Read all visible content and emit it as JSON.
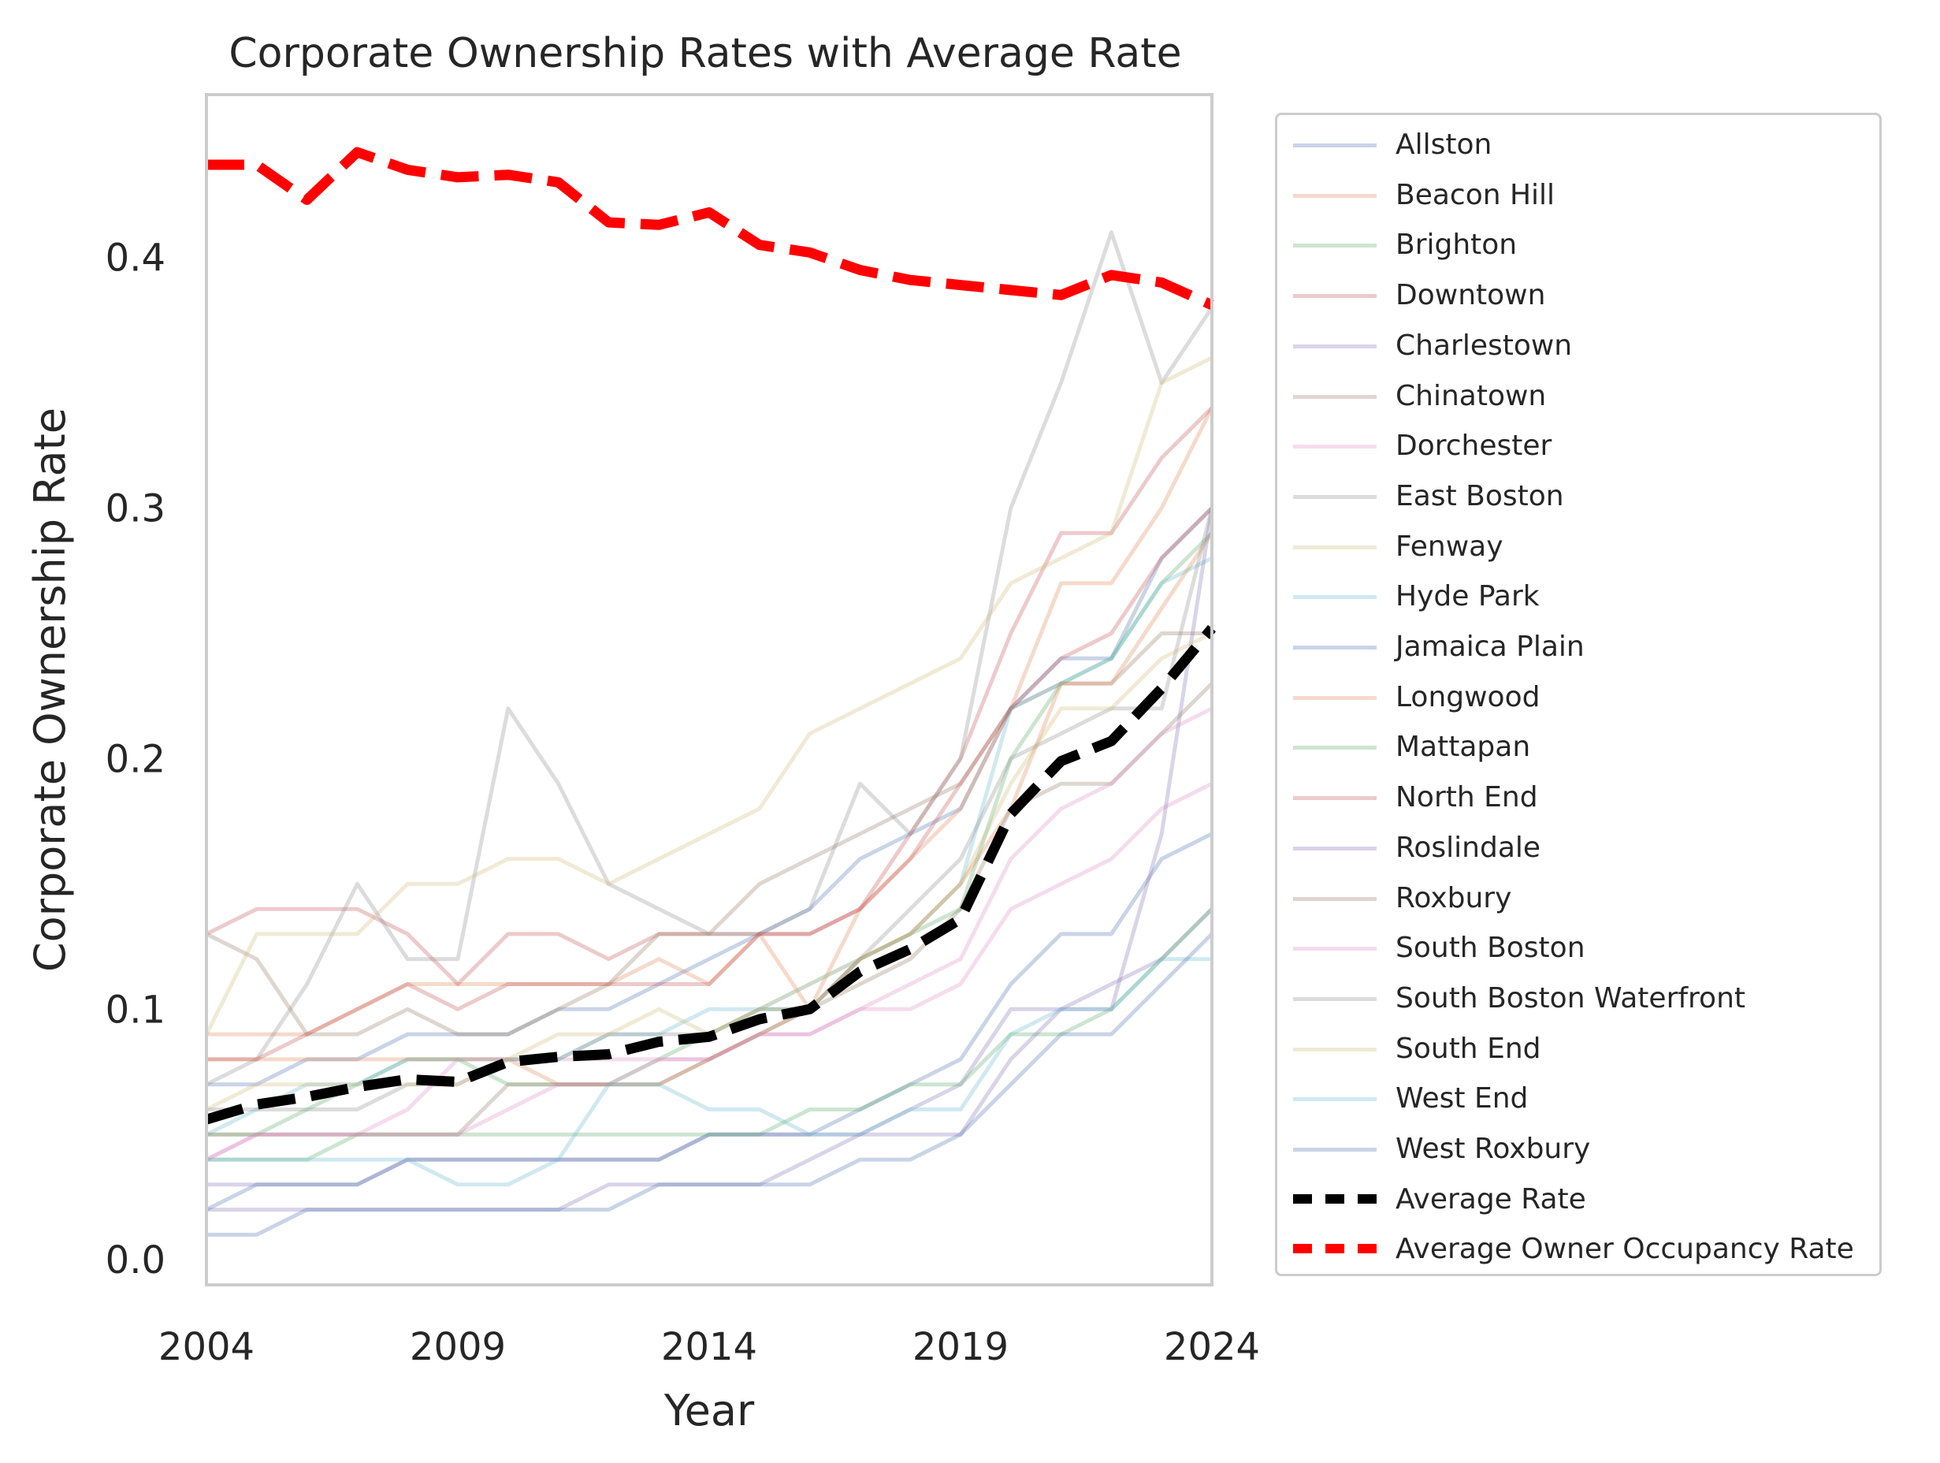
{
  "chart_data": {
    "type": "line",
    "title": "Corporate Ownership Rates with Average Rate",
    "xlabel": "Year",
    "ylabel": "Corporate Ownership Rate",
    "xlim": [
      2004,
      2024
    ],
    "ylim": [
      -0.01,
      0.465
    ],
    "xticks": [
      2004,
      2009,
      2014,
      2019,
      2024
    ],
    "xtick_labels": [
      "2004",
      "2009",
      "2014",
      "2019",
      "2024"
    ],
    "yticks": [
      0.0,
      0.1,
      0.2,
      0.3,
      0.4
    ],
    "ytick_labels": [
      "0.0",
      "0.1",
      "0.2",
      "0.3",
      "0.4"
    ],
    "grid": false,
    "legend_position": "outside right",
    "x": [
      2004,
      2005,
      2006,
      2007,
      2008,
      2009,
      2010,
      2011,
      2012,
      2013,
      2014,
      2015,
      2016,
      2017,
      2018,
      2019,
      2020,
      2021,
      2022,
      2023,
      2024
    ],
    "series": [
      {
        "name": "Allston",
        "color": "#4c72b0",
        "style": "thin",
        "values": [
          0.07,
          0.07,
          0.08,
          0.08,
          0.09,
          0.09,
          0.09,
          0.1,
          0.1,
          0.11,
          0.12,
          0.13,
          0.14,
          0.16,
          0.17,
          0.18,
          0.22,
          0.24,
          0.24,
          0.28,
          0.3
        ]
      },
      {
        "name": "Beacon Hill",
        "color": "#dd8452",
        "style": "thin",
        "values": [
          0.09,
          0.09,
          0.09,
          0.1,
          0.11,
          0.11,
          0.11,
          0.11,
          0.11,
          0.12,
          0.11,
          0.13,
          0.1,
          0.14,
          0.16,
          0.18,
          0.22,
          0.27,
          0.27,
          0.3,
          0.34
        ]
      },
      {
        "name": "Brighton",
        "color": "#55a868",
        "style": "thin",
        "values": [
          0.05,
          0.05,
          0.06,
          0.07,
          0.08,
          0.08,
          0.07,
          0.07,
          0.07,
          0.08,
          0.09,
          0.1,
          0.1,
          0.12,
          0.13,
          0.14,
          0.2,
          0.23,
          0.24,
          0.27,
          0.29
        ]
      },
      {
        "name": "Downtown",
        "color": "#c44e52",
        "style": "thin",
        "values": [
          0.13,
          0.14,
          0.14,
          0.14,
          0.13,
          0.11,
          0.13,
          0.13,
          0.12,
          0.13,
          0.13,
          0.13,
          0.13,
          0.14,
          0.17,
          0.2,
          0.25,
          0.29,
          0.29,
          0.32,
          0.34
        ]
      },
      {
        "name": "Charlestown",
        "color": "#8172b3",
        "style": "thin",
        "values": [
          0.03,
          0.03,
          0.03,
          0.03,
          0.04,
          0.04,
          0.04,
          0.04,
          0.04,
          0.04,
          0.05,
          0.05,
          0.05,
          0.05,
          0.06,
          0.07,
          0.1,
          0.1,
          0.11,
          0.12,
          0.14
        ]
      },
      {
        "name": "Chinatown",
        "color": "#937860",
        "style": "thin",
        "values": [
          0.13,
          0.12,
          0.09,
          0.09,
          0.1,
          0.09,
          0.09,
          0.1,
          0.11,
          0.13,
          0.13,
          0.15,
          0.16,
          0.17,
          0.18,
          0.19,
          0.22,
          0.23,
          0.23,
          0.25,
          0.25
        ]
      },
      {
        "name": "Dorchester",
        "color": "#da8bc3",
        "style": "thin",
        "values": [
          0.04,
          0.05,
          0.05,
          0.05,
          0.06,
          0.08,
          0.08,
          0.08,
          0.08,
          0.08,
          0.08,
          0.09,
          0.09,
          0.1,
          0.1,
          0.11,
          0.14,
          0.15,
          0.16,
          0.18,
          0.19
        ]
      },
      {
        "name": "East Boston",
        "color": "#8c8c8c",
        "style": "thin",
        "values": [
          0.07,
          0.08,
          0.11,
          0.15,
          0.12,
          0.12,
          0.22,
          0.19,
          0.15,
          0.14,
          0.13,
          0.13,
          0.14,
          0.19,
          0.17,
          0.2,
          0.3,
          0.35,
          0.41,
          0.35,
          0.38
        ]
      },
      {
        "name": "Fenway",
        "color": "#ccb974",
        "style": "thin",
        "values": [
          0.09,
          0.13,
          0.13,
          0.13,
          0.15,
          0.15,
          0.16,
          0.16,
          0.15,
          0.16,
          0.17,
          0.18,
          0.21,
          0.22,
          0.23,
          0.24,
          0.27,
          0.28,
          0.29,
          0.35,
          0.36
        ]
      },
      {
        "name": "Hyde Park",
        "color": "#64b5cd",
        "style": "thin",
        "values": [
          0.05,
          0.06,
          0.07,
          0.07,
          0.08,
          0.08,
          0.08,
          0.08,
          0.09,
          0.09,
          0.1,
          0.1,
          0.11,
          0.12,
          0.13,
          0.15,
          0.22,
          0.23,
          0.24,
          0.27,
          0.28
        ]
      },
      {
        "name": "Jamaica Plain",
        "color": "#4c72b0",
        "style": "thin",
        "values": [
          0.02,
          0.03,
          0.03,
          0.03,
          0.04,
          0.04,
          0.04,
          0.04,
          0.04,
          0.04,
          0.05,
          0.05,
          0.05,
          0.06,
          0.07,
          0.08,
          0.11,
          0.13,
          0.13,
          0.16,
          0.17
        ]
      },
      {
        "name": "Longwood",
        "color": "#dd8452",
        "style": "thin",
        "values": [
          0.08,
          0.08,
          0.08,
          0.08,
          0.08,
          0.08,
          0.08,
          0.07,
          0.07,
          0.07,
          0.08,
          0.09,
          0.1,
          0.12,
          0.13,
          0.15,
          0.18,
          0.23,
          0.23,
          0.26,
          0.29
        ]
      },
      {
        "name": "Mattapan",
        "color": "#55a868",
        "style": "thin",
        "values": [
          0.04,
          0.04,
          0.04,
          0.05,
          0.05,
          0.05,
          0.05,
          0.05,
          0.05,
          0.05,
          0.05,
          0.05,
          0.06,
          0.06,
          0.07,
          0.07,
          0.09,
          0.09,
          0.1,
          0.12,
          0.14
        ]
      },
      {
        "name": "North End",
        "color": "#c44e52",
        "style": "thin",
        "values": [
          0.08,
          0.08,
          0.09,
          0.1,
          0.11,
          0.1,
          0.11,
          0.11,
          0.11,
          0.11,
          0.11,
          0.13,
          0.13,
          0.14,
          0.16,
          0.19,
          0.22,
          0.24,
          0.25,
          0.28,
          0.3
        ]
      },
      {
        "name": "Roslindale",
        "color": "#8172b3",
        "style": "thin",
        "values": [
          0.02,
          0.02,
          0.02,
          0.02,
          0.02,
          0.02,
          0.02,
          0.02,
          0.03,
          0.03,
          0.03,
          0.03,
          0.04,
          0.05,
          0.05,
          0.05,
          0.08,
          0.1,
          0.1,
          0.17,
          0.3
        ]
      },
      {
        "name": "Roxbury",
        "color": "#937860",
        "style": "thin",
        "values": [
          0.05,
          0.05,
          0.05,
          0.05,
          0.05,
          0.05,
          0.07,
          0.07,
          0.07,
          0.07,
          0.08,
          0.09,
          0.1,
          0.11,
          0.12,
          0.14,
          0.18,
          0.19,
          0.19,
          0.21,
          0.23
        ]
      },
      {
        "name": "South Boston",
        "color": "#da8bc3",
        "style": "thin",
        "values": [
          0.04,
          0.05,
          0.05,
          0.05,
          0.05,
          0.05,
          0.06,
          0.07,
          0.07,
          0.08,
          0.08,
          0.09,
          0.09,
          0.1,
          0.11,
          0.12,
          0.16,
          0.18,
          0.19,
          0.21,
          0.22
        ]
      },
      {
        "name": "South Boston Waterfront",
        "color": "#8c8c8c",
        "style": "thin",
        "values": [
          0.06,
          0.06,
          0.06,
          0.06,
          0.07,
          0.07,
          0.08,
          0.08,
          0.09,
          0.09,
          0.09,
          0.1,
          0.1,
          0.12,
          0.14,
          0.16,
          0.2,
          0.21,
          0.22,
          0.22,
          0.3
        ]
      },
      {
        "name": "South End",
        "color": "#ccb974",
        "style": "thin",
        "values": [
          0.06,
          0.07,
          0.07,
          0.07,
          0.07,
          0.07,
          0.08,
          0.09,
          0.09,
          0.1,
          0.09,
          0.1,
          0.11,
          0.12,
          0.13,
          0.15,
          0.19,
          0.22,
          0.22,
          0.24,
          0.25
        ]
      },
      {
        "name": "West End",
        "color": "#64b5cd",
        "style": "thin",
        "values": [
          0.04,
          0.04,
          0.04,
          0.04,
          0.04,
          0.03,
          0.03,
          0.04,
          0.07,
          0.07,
          0.06,
          0.06,
          0.05,
          0.05,
          0.06,
          0.06,
          0.09,
          0.1,
          0.1,
          0.12,
          0.12
        ]
      },
      {
        "name": "West Roxbury",
        "color": "#4c72b0",
        "style": "thin",
        "values": [
          0.01,
          0.01,
          0.02,
          0.02,
          0.02,
          0.02,
          0.02,
          0.02,
          0.02,
          0.03,
          0.03,
          0.03,
          0.03,
          0.04,
          0.04,
          0.05,
          0.07,
          0.09,
          0.09,
          0.11,
          0.13
        ]
      },
      {
        "name": "Average Rate",
        "color": "#000000",
        "style": "dashed",
        "values": [
          0.056,
          0.062,
          0.065,
          0.069,
          0.072,
          0.071,
          0.079,
          0.081,
          0.082,
          0.087,
          0.089,
          0.096,
          0.1,
          0.115,
          0.124,
          0.136,
          0.178,
          0.199,
          0.207,
          0.228,
          0.252
        ]
      },
      {
        "name": "Average Owner Occupancy Rate",
        "color": "#ff0000",
        "style": "dashed",
        "values": [
          0.437,
          0.437,
          0.423,
          0.442,
          0.435,
          0.432,
          0.433,
          0.43,
          0.414,
          0.413,
          0.418,
          0.405,
          0.402,
          0.395,
          0.391,
          0.389,
          0.387,
          0.385,
          0.393,
          0.39,
          0.381
        ]
      }
    ]
  }
}
